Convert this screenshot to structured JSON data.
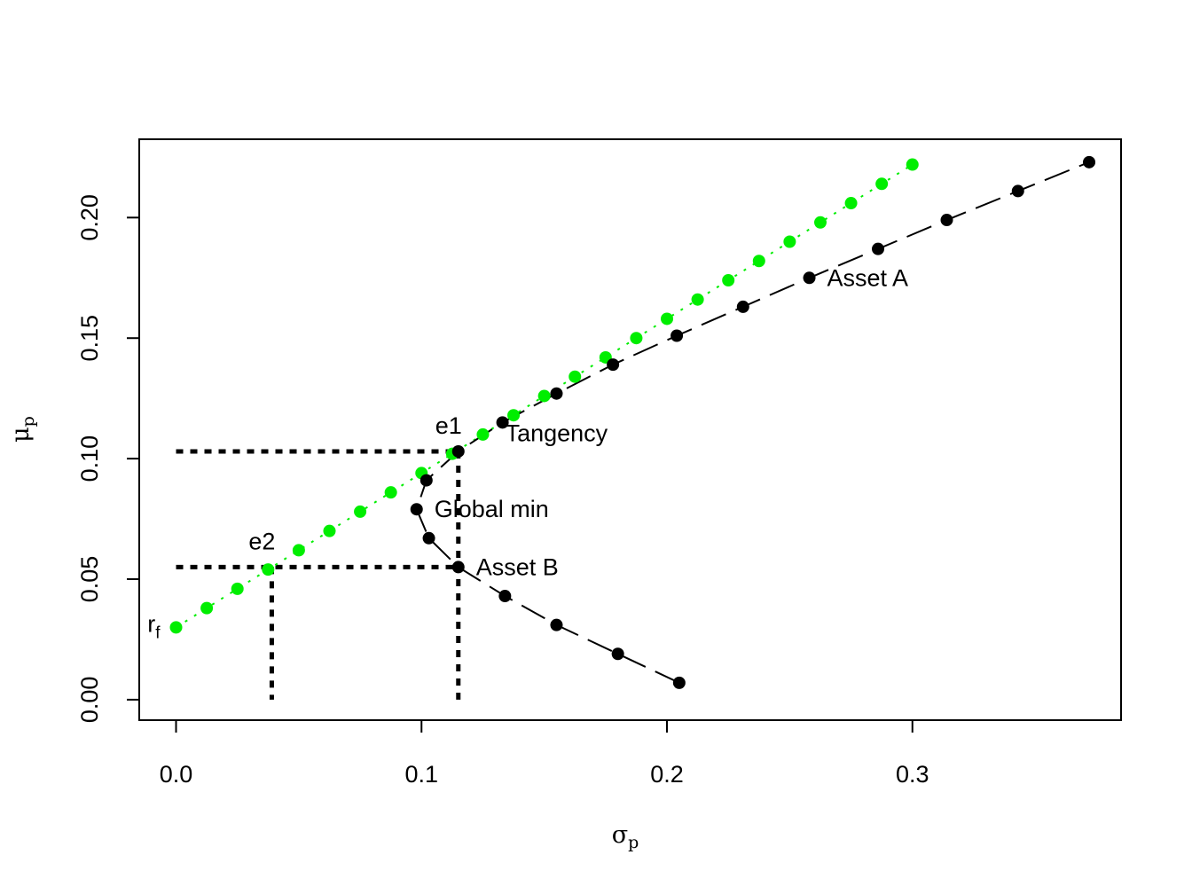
{
  "chart_data": {
    "type": "scatter",
    "xlabel": "σ",
    "xlabel_sub": "p",
    "ylabel": "μ",
    "ylabel_sub": "p",
    "xlim": [
      -0.015,
      0.385
    ],
    "ylim": [
      -0.0085,
      0.2325
    ],
    "x_ticks": [
      "0.0",
      "0.1",
      "0.2",
      "0.3"
    ],
    "x_tick_values": [
      0.0,
      0.1,
      0.2,
      0.3
    ],
    "y_ticks": [
      "0.00",
      "0.05",
      "0.10",
      "0.15",
      "0.20"
    ],
    "y_tick_values": [
      0.0,
      0.05,
      0.1,
      0.15,
      0.2
    ],
    "grid": false,
    "colors": {
      "frontier": "#000000",
      "tangent_line": "#00ee00",
      "guides": "#000000"
    },
    "series": [
      {
        "style": "tangent-line",
        "color": "#00ee00",
        "x": [
          0.0,
          0.0125,
          0.025,
          0.0375,
          0.05,
          0.0625,
          0.075,
          0.0875,
          0.1,
          0.1125,
          0.125,
          0.1375,
          0.15,
          0.1625,
          0.175,
          0.1875,
          0.2,
          0.2125,
          0.225,
          0.2375,
          0.25,
          0.2625,
          0.275,
          0.2875,
          0.3
        ],
        "y": [
          0.03,
          0.038,
          0.046,
          0.054,
          0.062,
          0.07,
          0.078,
          0.086,
          0.094,
          0.102,
          0.11,
          0.118,
          0.126,
          0.134,
          0.142,
          0.15,
          0.158,
          0.166,
          0.174,
          0.182,
          0.19,
          0.198,
          0.206,
          0.214,
          0.222
        ]
      },
      {
        "style": "frontier",
        "color": "#000000",
        "x": [
          0.205,
          0.18,
          0.155,
          0.134,
          0.115,
          0.103,
          0.098,
          0.102,
          0.115,
          0.133,
          0.155,
          0.178,
          0.204,
          0.231,
          0.258,
          0.286,
          0.314,
          0.343,
          0.372
        ],
        "y": [
          0.007,
          0.019,
          0.031,
          0.043,
          0.055,
          0.067,
          0.079,
          0.091,
          0.103,
          0.115,
          0.127,
          0.139,
          0.151,
          0.163,
          0.175,
          0.187,
          0.199,
          0.211,
          0.223
        ]
      }
    ],
    "guides": [
      {
        "from": [
          0.0,
          0.103
        ],
        "to": [
          0.115,
          0.103
        ]
      },
      {
        "from": [
          0.115,
          0.103
        ],
        "to": [
          0.115,
          0.0
        ]
      },
      {
        "from": [
          0.0,
          0.055
        ],
        "to": [
          0.115,
          0.055
        ]
      },
      {
        "from": [
          0.039,
          0.055
        ],
        "to": [
          0.039,
          0.0
        ]
      }
    ],
    "annotations": [
      {
        "text": "Asset A",
        "x": 0.258,
        "y": 0.175,
        "pos": "right"
      },
      {
        "text": "Asset B",
        "x": 0.115,
        "y": 0.055,
        "pos": "right"
      },
      {
        "text": "Global min",
        "x": 0.098,
        "y": 0.079,
        "pos": "right"
      },
      {
        "text": "Tangency",
        "x": 0.133,
        "y": 0.115,
        "pos": "below-right"
      },
      {
        "text": "e1",
        "x": 0.115,
        "y": 0.103,
        "pos": "above-left"
      },
      {
        "text": "e2",
        "x": 0.039,
        "y": 0.055,
        "pos": "above-left"
      },
      {
        "text": "r",
        "sub": "f",
        "x": 0.0,
        "y": 0.03,
        "pos": "left"
      }
    ]
  }
}
